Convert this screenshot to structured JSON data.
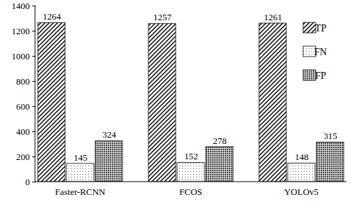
{
  "chart_data": {
    "type": "bar",
    "categories": [
      "Faster-RCNN",
      "FCOS",
      "YOLOv5"
    ],
    "series": [
      {
        "name": "TP",
        "color": "#222222",
        "values": [
          1264,
          1257,
          1261
        ]
      },
      {
        "name": "FN",
        "color": "#555555",
        "values": [
          145,
          152,
          148
        ]
      },
      {
        "name": "FP",
        "color": "#444444",
        "values": [
          324,
          278,
          315
        ]
      }
    ],
    "ylim": [
      0,
      1400
    ],
    "yticks": [
      0,
      200,
      400,
      600,
      800,
      1000,
      1200,
      1400
    ],
    "grid": false,
    "data_labels": true,
    "legend": "top-right"
  }
}
